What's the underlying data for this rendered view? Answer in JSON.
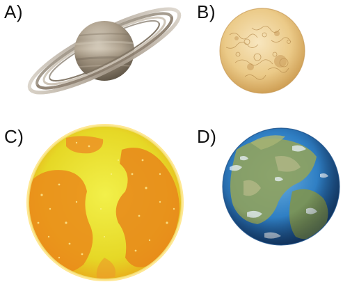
{
  "options": [
    {
      "label": "A)",
      "icon": "saturn-planet-icon"
    },
    {
      "label": "B)",
      "icon": "venus-planet-icon"
    },
    {
      "label": "C)",
      "icon": "jupiter-like-yellow-planet-icon"
    },
    {
      "label": "D)",
      "icon": "earth-planet-icon"
    }
  ],
  "colors": {
    "saturn_body": "#a89a86",
    "saturn_ring": "#b8ab98",
    "venus_body": "#e9c88a",
    "yellow_planet": "#e8e030",
    "orange_patch": "#e88a1c",
    "earth_ocean": "#2a78c0",
    "earth_land": "#8aa060"
  }
}
